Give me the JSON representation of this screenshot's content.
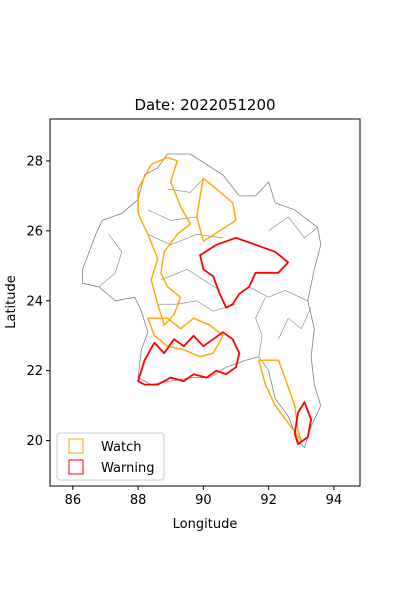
{
  "map": {
    "title": "Date: 2022051200",
    "xlabel": "Longitude",
    "ylabel": "Latitude",
    "xlim": [
      85.3,
      94.8
    ],
    "ylim": [
      18.7,
      29.2
    ],
    "x_ticks": [
      86,
      88,
      90,
      92,
      94
    ],
    "y_ticks": [
      20,
      22,
      24,
      26,
      28
    ],
    "grid": false,
    "legend": {
      "placement": "lower-left",
      "entries": [
        {
          "label": "Watch",
          "color": "#ffa500"
        },
        {
          "label": "Warning",
          "color": "#ff0000"
        }
      ]
    },
    "colors": {
      "boundary": "#808080",
      "watch": "#ffa500",
      "warning": "#ff0000",
      "axes": "#000000"
    },
    "regions": {
      "country_outline": [
        [
          86.3,
          24.5
        ],
        [
          86.8,
          24.4
        ],
        [
          87.3,
          24.0
        ],
        [
          87.9,
          24.1
        ],
        [
          88.1,
          23.7
        ],
        [
          88.3,
          23.1
        ],
        [
          88.1,
          22.6
        ],
        [
          88.0,
          21.8
        ],
        [
          88.4,
          21.6
        ],
        [
          89.0,
          21.7
        ],
        [
          89.6,
          21.8
        ],
        [
          90.2,
          21.8
        ],
        [
          90.7,
          22.1
        ],
        [
          91.3,
          22.3
        ],
        [
          91.7,
          22.4
        ],
        [
          92.0,
          22.0
        ],
        [
          92.2,
          21.2
        ],
        [
          92.6,
          20.7
        ],
        [
          92.9,
          20.0
        ],
        [
          93.1,
          19.8
        ],
        [
          93.3,
          20.4
        ],
        [
          93.6,
          21.0
        ],
        [
          93.4,
          21.6
        ],
        [
          93.3,
          22.4
        ],
        [
          93.4,
          23.2
        ],
        [
          93.2,
          24.0
        ],
        [
          93.4,
          24.9
        ],
        [
          93.6,
          25.6
        ],
        [
          93.5,
          26.1
        ],
        [
          92.8,
          26.6
        ],
        [
          92.2,
          26.8
        ],
        [
          92.0,
          27.4
        ],
        [
          91.6,
          27.0
        ],
        [
          91.1,
          27.0
        ],
        [
          90.6,
          27.6
        ],
        [
          89.6,
          28.2
        ],
        [
          88.9,
          28.2
        ],
        [
          88.6,
          27.8
        ],
        [
          88.2,
          27.6
        ],
        [
          88.0,
          26.9
        ],
        [
          87.5,
          26.5
        ],
        [
          86.9,
          26.3
        ],
        [
          86.7,
          25.9
        ],
        [
          86.5,
          25.4
        ],
        [
          86.3,
          24.9
        ]
      ],
      "watch_zones": [
        [
          [
            88.0,
            27.2
          ],
          [
            88.4,
            27.9
          ],
          [
            88.9,
            28.1
          ],
          [
            89.2,
            28.0
          ],
          [
            89.0,
            27.4
          ],
          [
            89.3,
            26.7
          ],
          [
            89.6,
            26.2
          ],
          [
            89.2,
            25.9
          ],
          [
            88.8,
            25.4
          ],
          [
            88.7,
            24.8
          ],
          [
            88.9,
            24.4
          ],
          [
            89.3,
            24.1
          ],
          [
            89.1,
            23.6
          ],
          [
            88.8,
            23.3
          ],
          [
            88.6,
            23.9
          ],
          [
            88.4,
            24.6
          ],
          [
            88.6,
            25.2
          ],
          [
            88.3,
            25.9
          ],
          [
            88.0,
            26.5
          ]
        ],
        [
          [
            90.0,
            27.5
          ],
          [
            90.4,
            27.2
          ],
          [
            90.9,
            26.8
          ],
          [
            91.0,
            26.3
          ],
          [
            90.5,
            26.0
          ],
          [
            90.0,
            25.7
          ],
          [
            89.8,
            26.4
          ],
          [
            89.9,
            27.0
          ]
        ],
        [
          [
            88.3,
            23.5
          ],
          [
            88.9,
            23.5
          ],
          [
            89.3,
            23.2
          ],
          [
            89.7,
            23.5
          ],
          [
            90.2,
            23.3
          ],
          [
            90.6,
            23.0
          ],
          [
            90.3,
            22.5
          ],
          [
            89.9,
            22.4
          ],
          [
            89.4,
            22.6
          ],
          [
            88.9,
            22.7
          ],
          [
            88.5,
            23.0
          ]
        ],
        [
          [
            91.7,
            22.3
          ],
          [
            92.3,
            22.3
          ],
          [
            92.5,
            21.8
          ],
          [
            92.8,
            21.0
          ],
          [
            92.9,
            20.3
          ],
          [
            93.0,
            20.0
          ],
          [
            92.6,
            20.5
          ],
          [
            92.2,
            21.0
          ],
          [
            91.9,
            21.6
          ]
        ]
      ],
      "warning_zones": [
        [
          [
            89.9,
            25.3
          ],
          [
            90.4,
            25.6
          ],
          [
            91.0,
            25.8
          ],
          [
            91.6,
            25.6
          ],
          [
            92.2,
            25.4
          ],
          [
            92.6,
            25.1
          ],
          [
            92.3,
            24.8
          ],
          [
            91.6,
            24.8
          ],
          [
            91.4,
            24.4
          ],
          [
            91.1,
            24.2
          ],
          [
            90.9,
            23.9
          ],
          [
            90.7,
            23.8
          ],
          [
            90.5,
            24.2
          ],
          [
            90.3,
            24.7
          ],
          [
            90.0,
            24.9
          ]
        ],
        [
          [
            88.0,
            21.7
          ],
          [
            88.2,
            22.3
          ],
          [
            88.5,
            22.8
          ],
          [
            88.8,
            22.5
          ],
          [
            89.1,
            22.9
          ],
          [
            89.4,
            22.7
          ],
          [
            89.7,
            23.0
          ],
          [
            90.0,
            22.7
          ],
          [
            90.3,
            22.9
          ],
          [
            90.6,
            23.1
          ],
          [
            90.9,
            22.9
          ],
          [
            91.1,
            22.5
          ],
          [
            91.0,
            22.1
          ],
          [
            90.7,
            21.9
          ],
          [
            90.4,
            22.0
          ],
          [
            90.1,
            21.8
          ],
          [
            89.7,
            21.9
          ],
          [
            89.4,
            21.7
          ],
          [
            89.0,
            21.8
          ],
          [
            88.6,
            21.6
          ],
          [
            88.2,
            21.6
          ]
        ],
        [
          [
            92.9,
            20.8
          ],
          [
            93.1,
            21.1
          ],
          [
            93.3,
            20.6
          ],
          [
            93.2,
            20.1
          ],
          [
            92.9,
            19.9
          ],
          [
            92.8,
            20.2
          ]
        ]
      ],
      "internal_boundaries": [
        [
          [
            88.3,
            25.9
          ],
          [
            89.0,
            25.6
          ],
          [
            89.8,
            25.9
          ],
          [
            90.6,
            25.8
          ]
        ],
        [
          [
            88.7,
            24.6
          ],
          [
            89.5,
            24.9
          ],
          [
            90.0,
            24.6
          ],
          [
            90.5,
            24.3
          ]
        ],
        [
          [
            88.6,
            23.9
          ],
          [
            89.2,
            23.9
          ],
          [
            89.8,
            24.0
          ],
          [
            90.3,
            23.7
          ],
          [
            91.0,
            23.9
          ]
        ],
        [
          [
            91.4,
            24.4
          ],
          [
            92.0,
            24.1
          ],
          [
            92.5,
            24.3
          ],
          [
            93.2,
            24.0
          ]
        ],
        [
          [
            91.7,
            22.4
          ],
          [
            91.8,
            23.0
          ],
          [
            91.6,
            23.5
          ],
          [
            91.9,
            24.1
          ]
        ],
        [
          [
            89.8,
            26.4
          ],
          [
            89.0,
            26.3
          ],
          [
            88.3,
            26.6
          ]
        ],
        [
          [
            92.0,
            26.0
          ],
          [
            92.6,
            26.4
          ],
          [
            93.1,
            25.8
          ],
          [
            93.5,
            26.1
          ]
        ],
        [
          [
            92.3,
            22.9
          ],
          [
            92.6,
            23.5
          ],
          [
            93.0,
            23.2
          ],
          [
            93.3,
            23.8
          ]
        ],
        [
          [
            88.9,
            27.2
          ],
          [
            89.6,
            27.1
          ],
          [
            90.0,
            27.5
          ]
        ],
        [
          [
            86.8,
            24.4
          ],
          [
            87.3,
            24.8
          ],
          [
            87.5,
            25.4
          ],
          [
            87.1,
            25.9
          ]
        ]
      ]
    }
  }
}
